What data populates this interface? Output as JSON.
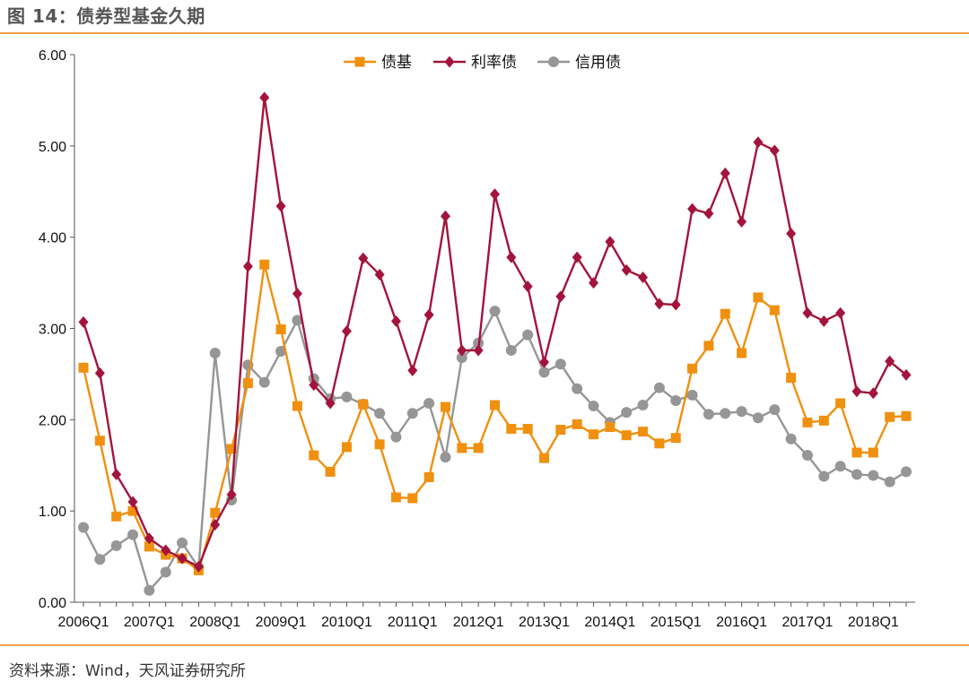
{
  "figure_title": "图 14：债券型基金久期",
  "source_note": "资料来源：Wind，天风证券研究所",
  "chart_data": {
    "type": "line",
    "title": "",
    "xlabel": "",
    "ylabel": "",
    "ylim": [
      0,
      6
    ],
    "yticks": [
      "0.00",
      "1.00",
      "2.00",
      "3.00",
      "4.00",
      "5.00",
      "6.00"
    ],
    "grid": false,
    "legend_position": "top-center",
    "x": [
      "2006Q1",
      "2006Q2",
      "2006Q3",
      "2006Q4",
      "2007Q1",
      "2007Q2",
      "2007Q3",
      "2007Q4",
      "2008Q1",
      "2008Q2",
      "2008Q3",
      "2008Q4",
      "2009Q1",
      "2009Q2",
      "2009Q3",
      "2009Q4",
      "2010Q1",
      "2010Q2",
      "2010Q3",
      "2010Q4",
      "2011Q1",
      "2011Q2",
      "2011Q3",
      "2011Q4",
      "2012Q1",
      "2012Q2",
      "2012Q3",
      "2012Q4",
      "2013Q1",
      "2013Q2",
      "2013Q3",
      "2013Q4",
      "2014Q1",
      "2014Q2",
      "2014Q3",
      "2014Q4",
      "2015Q1",
      "2015Q2",
      "2015Q3",
      "2015Q4",
      "2016Q1",
      "2016Q2",
      "2016Q3",
      "2016Q4",
      "2017Q1",
      "2017Q2",
      "2017Q3",
      "2017Q4",
      "2018Q1",
      "2018Q2",
      "2018Q3"
    ],
    "xtick_labels": [
      "2006Q1",
      "2007Q1",
      "2008Q1",
      "2009Q1",
      "2010Q1",
      "2011Q1",
      "2012Q1",
      "2013Q1",
      "2014Q1",
      "2015Q1",
      "2016Q1",
      "2017Q1",
      "2018Q1"
    ],
    "series": [
      {
        "name": "债基",
        "color": "#f0900f",
        "marker": "square",
        "values": [
          2.57,
          1.77,
          0.94,
          1.0,
          0.61,
          0.52,
          0.48,
          0.35,
          0.98,
          1.68,
          2.4,
          3.7,
          2.99,
          2.15,
          1.61,
          1.43,
          1.7,
          2.17,
          1.73,
          1.15,
          1.14,
          1.37,
          2.14,
          1.69,
          1.69,
          2.16,
          1.9,
          1.9,
          1.58,
          1.89,
          1.95,
          1.84,
          1.92,
          1.83,
          1.87,
          1.74,
          1.8,
          2.56,
          2.81,
          3.16,
          2.73,
          3.34,
          3.2,
          2.46,
          1.97,
          1.99,
          2.18,
          1.64,
          1.64,
          2.03,
          2.04
        ]
      },
      {
        "name": "利率债",
        "color": "#a3143c",
        "marker": "diamond",
        "values": [
          3.07,
          2.51,
          1.4,
          1.1,
          0.7,
          0.57,
          0.48,
          0.39,
          0.85,
          1.18,
          3.68,
          5.53,
          4.34,
          3.38,
          2.38,
          2.18,
          2.97,
          3.77,
          3.59,
          3.08,
          2.54,
          3.15,
          4.23,
          2.76,
          2.76,
          4.47,
          3.78,
          3.46,
          2.63,
          3.35,
          3.78,
          3.5,
          3.95,
          3.64,
          3.56,
          3.27,
          3.26,
          4.31,
          4.26,
          4.7,
          4.17,
          5.04,
          4.95,
          4.04,
          3.17,
          3.08,
          3.17,
          2.31,
          2.29,
          2.64,
          2.49
        ]
      },
      {
        "name": "信用债",
        "color": "#969696",
        "marker": "circle",
        "values": [
          0.82,
          0.47,
          0.62,
          0.74,
          0.13,
          0.33,
          0.65,
          0.38,
          2.73,
          1.12,
          2.6,
          2.41,
          2.75,
          3.09,
          2.45,
          2.23,
          2.25,
          2.17,
          2.07,
          1.81,
          2.07,
          2.18,
          1.59,
          2.68,
          2.84,
          3.19,
          2.76,
          2.93,
          2.52,
          2.61,
          2.34,
          2.15,
          1.97,
          2.08,
          2.16,
          2.35,
          2.21,
          2.27,
          2.06,
          2.07,
          2.09,
          2.02,
          2.11,
          1.79,
          1.61,
          1.38,
          1.49,
          1.4,
          1.39,
          1.32,
          1.43
        ]
      }
    ]
  }
}
